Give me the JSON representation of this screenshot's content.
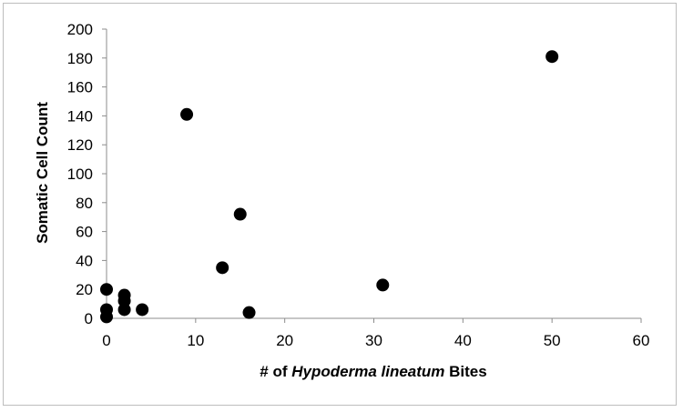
{
  "chart_data": {
    "type": "scatter",
    "title": "",
    "xlabel_parts": [
      "# of ",
      "Hypoderma lineatum",
      " Bites"
    ],
    "ylabel": "Somatic Cell Count",
    "xlim": [
      0,
      60
    ],
    "ylim": [
      0,
      200
    ],
    "x_ticks": [
      "0",
      "10",
      "20",
      "30",
      "40",
      "50",
      "60"
    ],
    "y_ticks": [
      "0",
      "20",
      "40",
      "60",
      "80",
      "100",
      "120",
      "140",
      "160",
      "180",
      "200"
    ],
    "grid": false,
    "legend": "none",
    "marker_color": "#000000",
    "points": [
      {
        "x": 0,
        "y": 1
      },
      {
        "x": 0,
        "y": 6
      },
      {
        "x": 0,
        "y": 20
      },
      {
        "x": 2,
        "y": 6
      },
      {
        "x": 2,
        "y": 12
      },
      {
        "x": 2,
        "y": 16
      },
      {
        "x": 4,
        "y": 6
      },
      {
        "x": 9,
        "y": 141
      },
      {
        "x": 13,
        "y": 35
      },
      {
        "x": 15,
        "y": 72
      },
      {
        "x": 16,
        "y": 4
      },
      {
        "x": 31,
        "y": 23
      },
      {
        "x": 50,
        "y": 181
      }
    ]
  }
}
